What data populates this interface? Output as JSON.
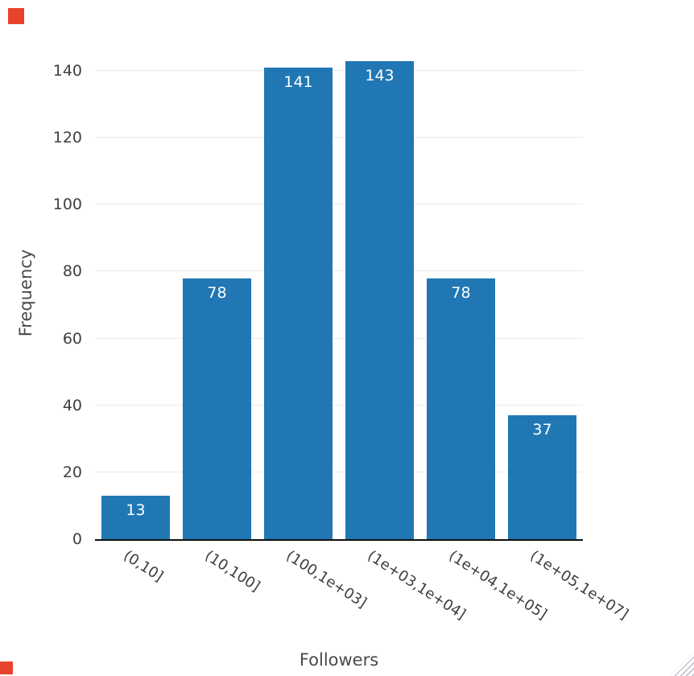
{
  "chart_data": {
    "type": "bar",
    "categories": [
      "(0,10]",
      "(10,100]",
      "(100,1e+03]",
      "(1e+03,1e+04]",
      "(1e+04,1e+05]",
      "(1e+05,1e+07]"
    ],
    "values": [
      13,
      78,
      141,
      143,
      78,
      37
    ],
    "title": "",
    "xlabel": "Followers",
    "ylabel": "Frequency",
    "ylim": [
      0,
      140
    ],
    "yticks": [
      0,
      20,
      40,
      60,
      80,
      100,
      120,
      140
    ],
    "style": {
      "bar_color": "#2077b4",
      "bar_label_color": "#ffffff",
      "grid_color": "#ebebeb",
      "axis_line_color": "#101010",
      "tick_label_color": "#3f3f3f",
      "axis_title_color": "#4a4a4a",
      "xtick_rotation_deg": 33,
      "grid": "horizontal",
      "legend": "none"
    }
  },
  "decorations": {
    "corner_marker_color": "#e8432d",
    "resize_grip_color": "#b8bcc4"
  }
}
